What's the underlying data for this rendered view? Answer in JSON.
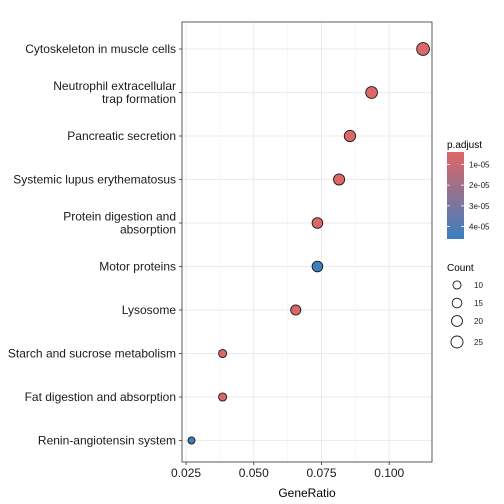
{
  "chart_data": {
    "type": "scatter",
    "xlabel": "GeneRatio",
    "ylabel": "",
    "xlim": [
      0.0235,
      0.1158
    ],
    "x_ticks": [
      0.025,
      0.05,
      0.075,
      0.1
    ],
    "x_tick_labels": [
      "0.025",
      "0.050",
      "0.075",
      "0.100"
    ],
    "grid": true,
    "categories": [
      "Cytoskeleton in muscle cells",
      "Neutrophil extracellular\ntrap formation",
      "Pancreatic secretion",
      "Systemic lupus erythematosus",
      "Protein digestion and\nabsorption",
      "Motor proteins",
      "Lysosome",
      "Starch and sucrose metabolism",
      "Fat digestion and absorption",
      "Renin-angiotensin system"
    ],
    "points": [
      {
        "term": "Cytoskeleton in muscle cells",
        "gene_ratio": 0.1125,
        "count": 29,
        "p_adjust": 5e-06
      },
      {
        "term": "Neutrophil extracellular trap formation",
        "gene_ratio": 0.0935,
        "count": 24,
        "p_adjust": 5e-06
      },
      {
        "term": "Pancreatic secretion",
        "gene_ratio": 0.0855,
        "count": 22,
        "p_adjust": 5e-06
      },
      {
        "term": "Systemic lupus erythematosus",
        "gene_ratio": 0.0815,
        "count": 21,
        "p_adjust": 5e-06
      },
      {
        "term": "Protein digestion and absorption",
        "gene_ratio": 0.0735,
        "count": 19,
        "p_adjust": 5e-06
      },
      {
        "term": "Motor proteins",
        "gene_ratio": 0.0735,
        "count": 19,
        "p_adjust": 4.5e-05
      },
      {
        "term": "Lysosome",
        "gene_ratio": 0.0655,
        "count": 17,
        "p_adjust": 5e-06
      },
      {
        "term": "Starch and sucrose metabolism",
        "gene_ratio": 0.0385,
        "count": 10,
        "p_adjust": 5e-06
      },
      {
        "term": "Fat digestion and absorption",
        "gene_ratio": 0.0385,
        "count": 10,
        "p_adjust": 5e-06
      },
      {
        "term": "Renin-angiotensin system",
        "gene_ratio": 0.027,
        "count": 7,
        "p_adjust": 4.5e-05
      }
    ],
    "legend_placement": "right",
    "color_legend": {
      "title": "p.adjust",
      "low_color": "#e06666",
      "high_color": "#3a7fc1",
      "range": [
        4e-06,
        4.6e-05
      ],
      "ticks": [
        1e-05,
        2e-05,
        3e-05,
        4e-05
      ],
      "tick_labels": [
        "1e-05",
        "2e-05",
        "3e-05",
        "4e-05"
      ]
    },
    "size_legend": {
      "title": "Count",
      "values": [
        10,
        15,
        20,
        25
      ],
      "labels": [
        "10",
        "15",
        "20",
        "25"
      ]
    }
  }
}
